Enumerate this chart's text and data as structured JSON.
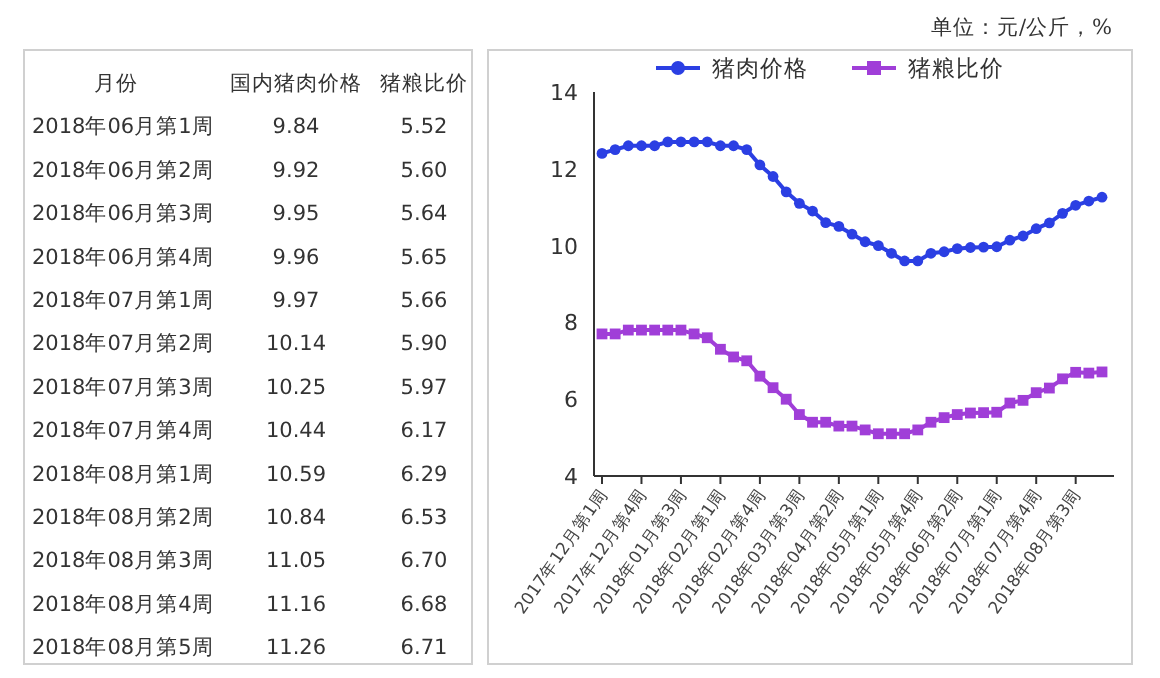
{
  "chart_data": [
    {
      "type": "other",
      "xlabel": "月份",
      "categories": [
        "2018年06月第1周",
        "2018年06月第2周",
        "2018年06月第3周",
        "2018年06月第4周",
        "2018年07月第1周",
        "2018年07月第2周",
        "2018年07月第3周",
        "2018年07月第4周",
        "2018年08月第1周",
        "2018年08月第2周",
        "2018年08月第3周",
        "2018年08月第4周",
        "2018年08月第5周"
      ],
      "series": [
        {
          "name": "国内猪肉价格",
          "values": [
            9.84,
            9.92,
            9.95,
            9.96,
            9.97,
            10.14,
            10.25,
            10.44,
            10.59,
            10.84,
            11.05,
            11.16,
            11.26
          ],
          "value_labels": [
            "9.84",
            "9.92",
            "9.95",
            "9.96",
            "9.97",
            "10.14",
            "10.25",
            "10.44",
            "10.59",
            "10.84",
            "11.05",
            "11.16",
            "11.26"
          ]
        },
        {
          "name": "猪粮比价",
          "values": [
            5.52,
            5.6,
            5.64,
            5.65,
            5.66,
            5.9,
            5.97,
            6.17,
            6.29,
            6.53,
            6.7,
            6.68,
            6.71
          ],
          "value_labels": [
            "5.52",
            "5.60",
            "5.64",
            "5.65",
            "5.66",
            "5.90",
            "5.97",
            "6.17",
            "6.29",
            "6.53",
            "6.70",
            "6.68",
            "6.71"
          ]
        }
      ]
    },
    {
      "type": "line",
      "annotations": [
        "单位：元/公斤，%"
      ],
      "categories": [
        "2017年12月第1周",
        null,
        null,
        "2017年12月第4周",
        null,
        null,
        "2018年01月第3周",
        null,
        null,
        "2018年02月第1周",
        null,
        null,
        "2018年02月第4周",
        null,
        null,
        "2018年03月第3周",
        null,
        null,
        "2018年04月第2周",
        null,
        null,
        "2018年05月第1周",
        null,
        null,
        "2018年05月第4周",
        null,
        null,
        "2018年06月第2周",
        null,
        null,
        "2018年07月第1周",
        null,
        null,
        "2018年07月第4周",
        null,
        null,
        "2018年08月第3周",
        null,
        null
      ],
      "series": [
        {
          "name": "猪肉价格",
          "color": "#2b3fe3",
          "marker": "circle",
          "values": [
            12.4,
            12.5,
            12.6,
            12.6,
            12.6,
            12.7,
            12.7,
            12.7,
            12.7,
            12.6,
            12.6,
            12.5,
            12.1,
            11.8,
            11.4,
            11.1,
            10.9,
            10.6,
            10.5,
            10.3,
            10.1,
            10.0,
            9.8,
            9.6,
            9.6,
            9.8,
            9.84,
            9.92,
            9.95,
            9.96,
            9.97,
            10.14,
            10.25,
            10.44,
            10.59,
            10.84,
            11.05,
            11.16,
            11.26
          ]
        },
        {
          "name": "猪粮比价",
          "color": "#a03ed8",
          "marker": "square",
          "values": [
            7.7,
            7.7,
            7.8,
            7.8,
            7.8,
            7.8,
            7.8,
            7.7,
            7.6,
            7.3,
            7.1,
            7.0,
            6.6,
            6.3,
            6.0,
            5.6,
            5.4,
            5.4,
            5.3,
            5.3,
            5.2,
            5.1,
            5.1,
            5.1,
            5.2,
            5.4,
            5.52,
            5.6,
            5.64,
            5.65,
            5.66,
            5.9,
            5.97,
            6.17,
            6.29,
            6.53,
            6.7,
            6.68,
            6.71
          ]
        }
      ],
      "ylim": [
        4,
        14
      ],
      "yticks": [
        4,
        6,
        8,
        10,
        12,
        14
      ],
      "grid": false,
      "legend": "top",
      "line_style": "solid"
    }
  ]
}
